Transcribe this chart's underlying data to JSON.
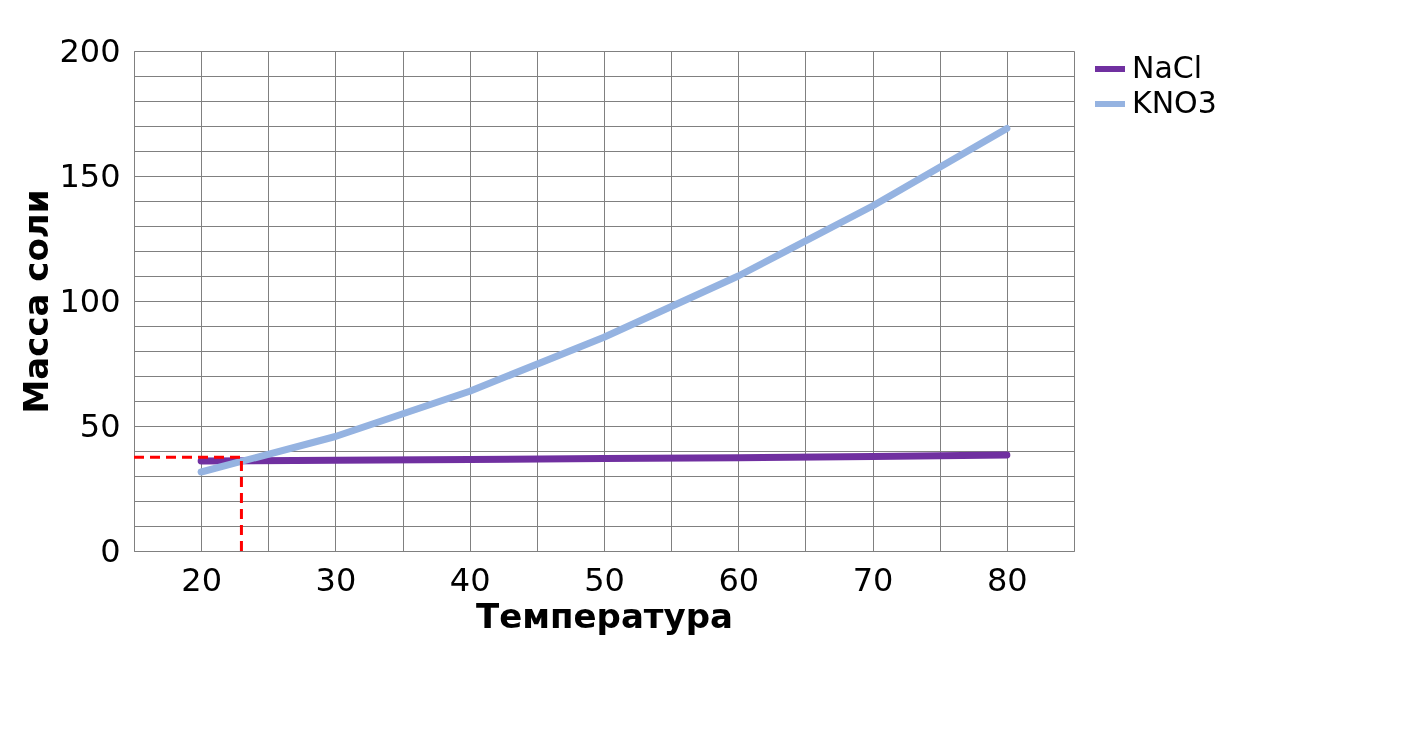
{
  "chart_data": {
    "type": "line",
    "xlabel": "Температура",
    "ylabel": "Масса соли",
    "x": [
      20,
      30,
      40,
      50,
      60,
      70,
      80
    ],
    "xlim": [
      15,
      85
    ],
    "xticks": [
      {
        "value": 15,
        "label": null
      },
      20,
      {
        "value": 25,
        "label": null
      },
      30,
      {
        "value": 35,
        "label": null
      },
      40,
      {
        "value": 45,
        "label": null
      },
      50,
      {
        "value": 55,
        "label": null
      },
      60,
      {
        "value": 65,
        "label": null
      },
      70,
      {
        "value": 75,
        "label": null
      },
      80,
      {
        "value": 85,
        "label": null
      }
    ],
    "ylim": [
      0,
      200
    ],
    "yticks": [
      0,
      {
        "value": 10,
        "label": null
      },
      {
        "value": 20,
        "label": null
      },
      {
        "value": 30,
        "label": null
      },
      {
        "value": 40,
        "label": null
      },
      50,
      {
        "value": 60,
        "label": null
      },
      {
        "value": 70,
        "label": null
      },
      {
        "value": 80,
        "label": null
      },
      {
        "value": 90,
        "label": null
      },
      100,
      {
        "value": 110,
        "label": null
      },
      {
        "value": 120,
        "label": null
      },
      {
        "value": 130,
        "label": null
      },
      {
        "value": 140,
        "label": null
      },
      150,
      {
        "value": 160,
        "label": null
      },
      {
        "value": 170,
        "label": null
      },
      {
        "value": 180,
        "label": null
      },
      {
        "value": 190,
        "label": null
      },
      200
    ],
    "series": [
      {
        "name": "NaCl",
        "color": "#7030a0",
        "values": [
          36,
          36.3,
          36.6,
          37,
          37.3,
          37.8,
          38.4
        ]
      },
      {
        "name": "KNO3",
        "color": "#95b3e1",
        "values": [
          31.6,
          45.8,
          63.9,
          85.5,
          110,
          138,
          169
        ]
      }
    ],
    "ref_lines": [
      {
        "axis": "x",
        "value": 23,
        "color": "#ff0000",
        "line_style": "dashed"
      },
      {
        "axis": "y",
        "value": 37.5,
        "color": "#ff0000",
        "line_style": "dashed"
      }
    ],
    "grid": true,
    "legend": "right",
    "marker": "none",
    "line_style": "solid"
  }
}
